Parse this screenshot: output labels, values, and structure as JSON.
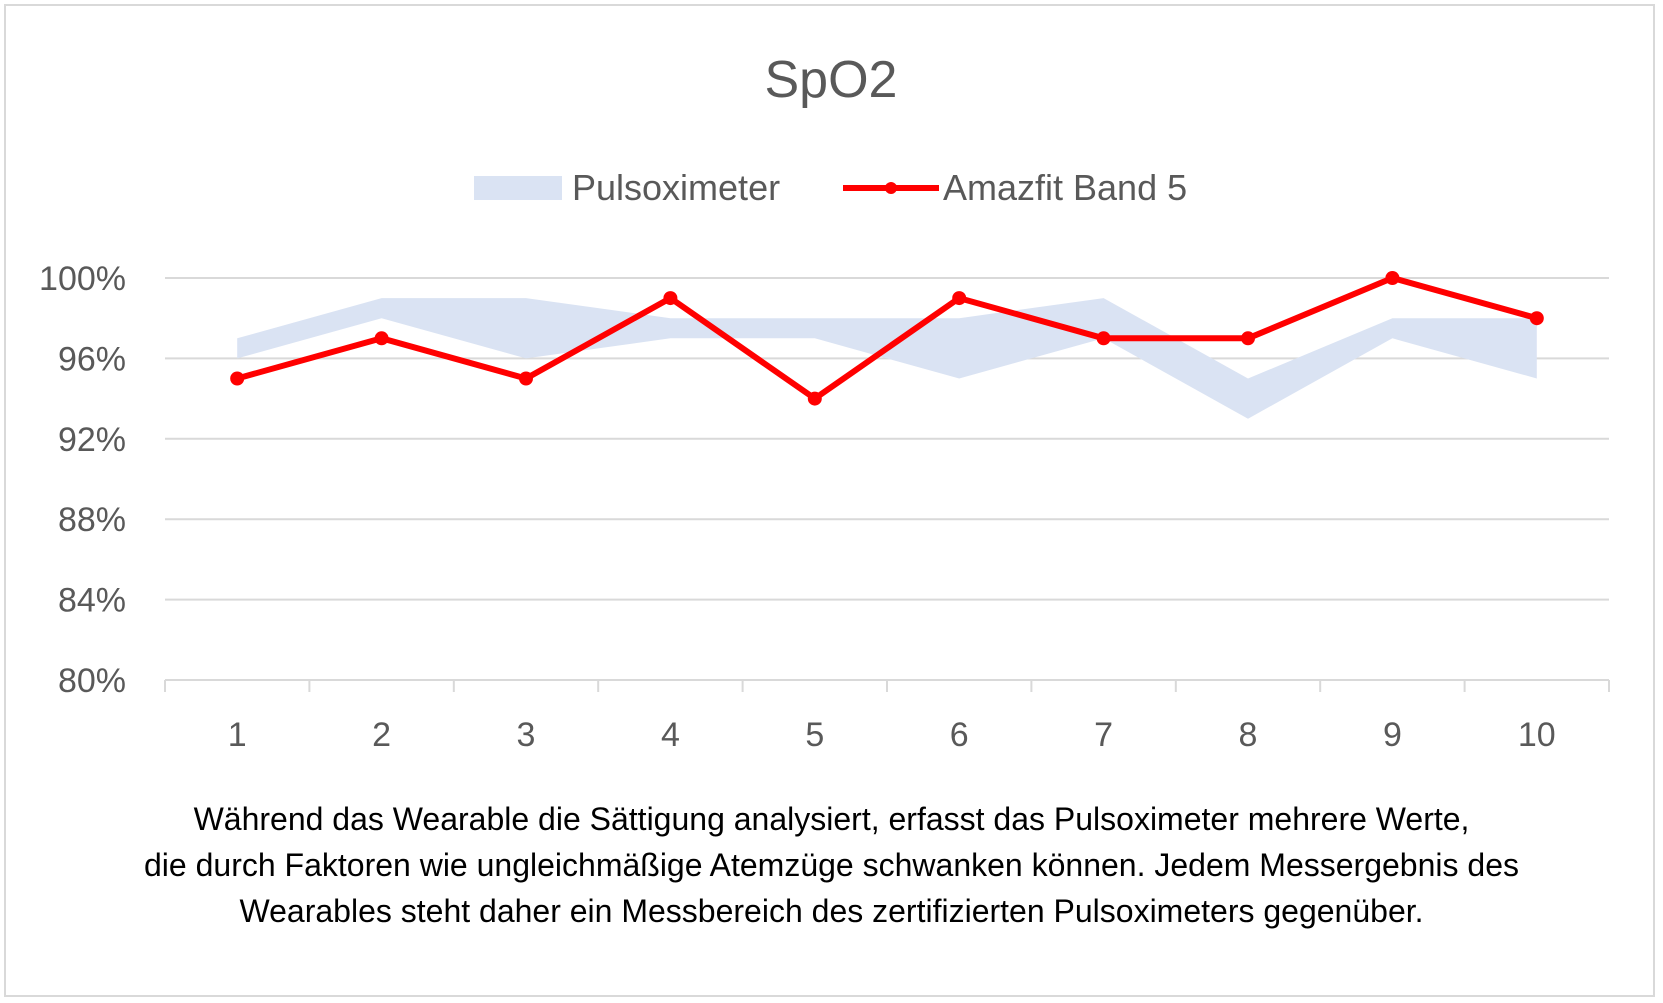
{
  "chart_data": {
    "type": "line",
    "title": "SpO2",
    "categories": [
      "1",
      "2",
      "3",
      "4",
      "5",
      "6",
      "7",
      "8",
      "9",
      "10"
    ],
    "ylim": [
      80,
      100
    ],
    "yticks": [
      "80%",
      "84%",
      "88%",
      "92%",
      "96%",
      "100%"
    ],
    "ytick_values": [
      80,
      84,
      88,
      92,
      96,
      100
    ],
    "grid": true,
    "legend_position": "top",
    "series": [
      {
        "name": "Pulsoximeter",
        "kind": "range",
        "color": "#dae3f3",
        "low": [
          96,
          98,
          96,
          97,
          97,
          95,
          97,
          93,
          97,
          95
        ],
        "high": [
          97,
          99,
          99,
          98,
          98,
          98,
          99,
          95,
          98,
          98
        ]
      },
      {
        "name": "Amazfit Band 5",
        "kind": "line",
        "color": "#ff0000",
        "values": [
          95,
          97,
          95,
          99,
          94,
          99,
          97,
          97,
          100,
          98
        ]
      }
    ]
  },
  "caption": {
    "lines": [
      "Während das Wearable die Sättigung analysiert, erfasst das Pulsoximeter mehrere Werte,",
      "die durch Faktoren wie ungleichmäßige Atemzüge schwanken können. Jedem Messergebnis des",
      "Wearables steht daher ein Messbereich des zertifizierten Pulsoximeters gegenüber."
    ]
  }
}
